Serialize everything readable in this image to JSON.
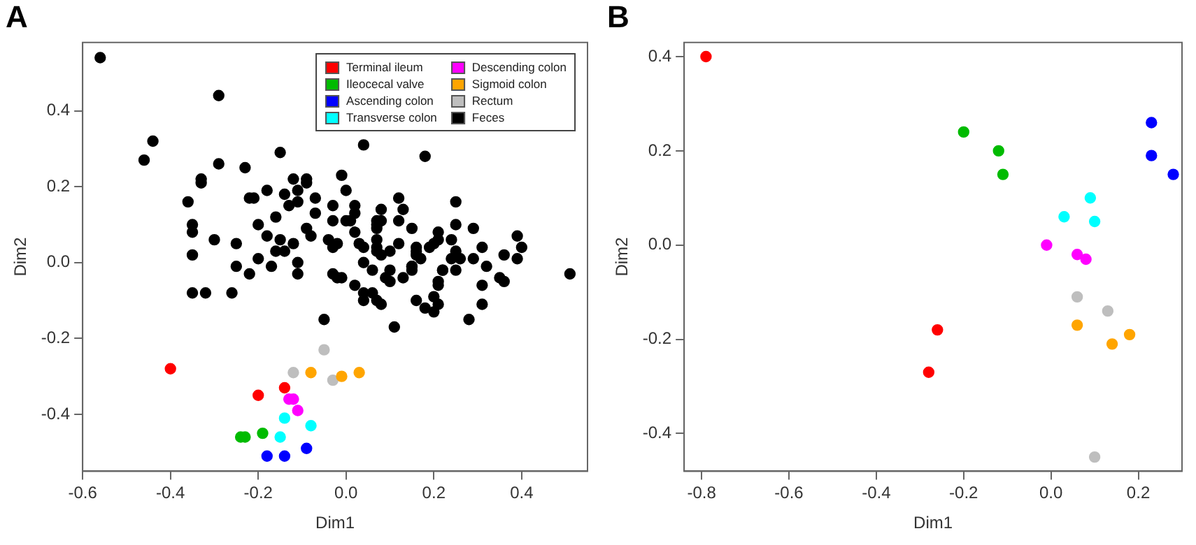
{
  "chart_data": [
    {
      "type": "scatter",
      "title": "A",
      "xlabel": "Dim1",
      "ylabel": "Dim2",
      "xlim": [
        -0.6,
        0.55
      ],
      "ylim": [
        -0.55,
        0.58
      ],
      "xticks": [
        -0.6,
        -0.4,
        -0.2,
        {
          "value": 0,
          "label": "0.0"
        },
        0.2,
        0.4
      ],
      "yticks": [
        -0.4,
        -0.2,
        {
          "value": 0,
          "label": "0.0"
        },
        0.2,
        0.4
      ],
      "grid": false,
      "legend": "top right",
      "marker": "circle",
      "series": [
        {
          "name": "Terminal ileum",
          "color": "#ff0000",
          "x": [
            -0.4,
            -0.2,
            -0.14
          ],
          "values": [
            -0.28,
            -0.35,
            -0.33
          ]
        },
        {
          "name": "Ileocecal valve",
          "color": "#00bb00",
          "x": [
            -0.24,
            -0.23,
            -0.19
          ],
          "values": [
            -0.46,
            -0.46,
            -0.45
          ]
        },
        {
          "name": "Ascending colon",
          "color": "#0000ff",
          "x": [
            -0.18,
            -0.14,
            -0.09
          ],
          "values": [
            -0.51,
            -0.51,
            -0.49
          ]
        },
        {
          "name": "Transverse colon",
          "color": "#00ffff",
          "x": [
            -0.14,
            -0.08,
            -0.15
          ],
          "values": [
            -0.41,
            -0.43,
            -0.46
          ]
        },
        {
          "name": "Descending colon",
          "color": "#ff00ff",
          "x": [
            -0.13,
            -0.12,
            -0.11
          ],
          "values": [
            -0.36,
            -0.36,
            -0.39
          ]
        },
        {
          "name": "Sigmoid colon",
          "color": "#ffa500",
          "x": [
            -0.08,
            -0.01,
            0.03
          ],
          "values": [
            -0.29,
            -0.3,
            -0.29
          ]
        },
        {
          "name": "Rectum",
          "color": "#bebebe",
          "x": [
            -0.05,
            -0.12,
            -0.03
          ],
          "values": [
            -0.23,
            -0.29,
            -0.31
          ]
        },
        {
          "name": "Feces",
          "color": "#000000",
          "x": [
            -0.56,
            -0.29,
            -0.44,
            -0.46,
            -0.29,
            -0.23,
            -0.15,
            -0.33,
            -0.33,
            -0.36,
            -0.35,
            -0.35,
            -0.35,
            -0.3,
            -0.25,
            -0.25,
            -0.22,
            -0.21,
            -0.2,
            -0.2,
            -0.22,
            -0.18,
            -0.16,
            -0.18,
            -0.15,
            -0.17,
            -0.16,
            -0.14,
            -0.14,
            -0.13,
            -0.11,
            -0.12,
            -0.11,
            -0.09,
            -0.09,
            -0.07,
            -0.07,
            -0.09,
            -0.08,
            -0.12,
            -0.11,
            -0.11,
            -0.03,
            -0.01,
            0,
            -0.03,
            0,
            -0.04,
            -0.02,
            -0.03,
            -0.03,
            -0.01,
            -0.02,
            0.04,
            0.18,
            0.02,
            -0.05,
            0.11,
            0.28,
            0.02,
            0.02,
            0.01,
            0.02,
            0.03,
            0.04,
            0.04,
            0.06,
            0.04,
            0.04,
            0.06,
            0.07,
            0.08,
            0.08,
            0.07,
            0.08,
            0.07,
            0.07,
            0.07,
            0.07,
            0.07,
            0.08,
            0.1,
            0.12,
            0.1,
            0.09,
            0.1,
            0.12,
            0.13,
            0.12,
            0.15,
            0.13,
            0.16,
            0.16,
            0.17,
            0.16,
            0.15,
            0.15,
            0.15,
            0.19,
            0.2,
            0.21,
            0.21,
            0.22,
            0.22,
            0.21,
            0.21,
            0.2,
            0.16,
            0.18,
            0.21,
            0.2,
            0.25,
            0.25,
            0.24,
            0.25,
            0.24,
            0.26,
            0.25,
            0.29,
            0.31,
            0.29,
            0.32,
            0.31,
            0.31,
            0.36,
            0.39,
            0.4,
            0.39,
            0.35,
            0.36,
            0.51,
            -0.35,
            -0.32,
            -0.26
          ],
          "values": [
            0.54,
            0.44,
            0.32,
            0.27,
            0.26,
            0.25,
            0.29,
            0.22,
            0.21,
            0.16,
            0.1,
            0.08,
            0.02,
            0.06,
            0.05,
            -0.01,
            0.17,
            0.17,
            0.1,
            0.01,
            -0.03,
            0.19,
            0.12,
            0.07,
            0.06,
            -0.01,
            0.03,
            0.03,
            0.18,
            0.15,
            0.16,
            0.22,
            0.19,
            0.21,
            0.22,
            0.17,
            0.13,
            0.09,
            0.07,
            0.05,
            0,
            -0.03,
            0.15,
            0.23,
            0.19,
            0.11,
            0.11,
            0.06,
            0.05,
            0.04,
            -0.03,
            -0.04,
            -0.04,
            0.31,
            0.28,
            -0.06,
            -0.15,
            -0.17,
            -0.15,
            0.15,
            0.13,
            0.11,
            0.08,
            0.05,
            0.04,
            0,
            -0.02,
            -0.08,
            -0.1,
            -0.08,
            -0.1,
            -0.11,
            0.14,
            0.11,
            0.11,
            0.1,
            0.09,
            0.06,
            0.04,
            0.03,
            0.02,
            0.03,
            0.05,
            -0.02,
            -0.04,
            -0.05,
            0.17,
            0.14,
            0.11,
            0.09,
            -0.04,
            0.04,
            0.03,
            0.01,
            0.02,
            -0.01,
            -0.02,
            -0.01,
            0.04,
            0.05,
            0.06,
            0.08,
            -0.02,
            -0.02,
            -0.05,
            -0.06,
            -0.09,
            -0.1,
            -0.12,
            -0.11,
            -0.13,
            0.16,
            0.1,
            0.06,
            0.03,
            0.01,
            0.01,
            -0.02,
            0.09,
            0.04,
            0.01,
            -0.01,
            -0.06,
            -0.11,
            0.02,
            0.07,
            0.04,
            0.01,
            -0.04,
            -0.05,
            -0.03,
            -0.08,
            -0.08,
            -0.08
          ]
        }
      ]
    },
    {
      "type": "scatter",
      "title": "B",
      "xlabel": "Dim1",
      "ylabel": "Dim2",
      "xlim": [
        -0.84,
        0.3
      ],
      "ylim": [
        -0.48,
        0.43
      ],
      "xticks": [
        -0.8,
        -0.6,
        -0.4,
        -0.2,
        {
          "value": 0,
          "label": "0.0"
        },
        0.2
      ],
      "yticks": [
        -0.4,
        -0.2,
        {
          "value": 0,
          "label": "0.0"
        },
        0.2,
        0.4
      ],
      "grid": false,
      "marker": "circle",
      "series": [
        {
          "color": "#ff0000",
          "x": [
            -0.79,
            -0.26,
            -0.28
          ],
          "values": [
            0.4,
            -0.18,
            -0.27
          ]
        },
        {
          "color": "#00bb00",
          "x": [
            -0.2,
            -0.12,
            -0.11
          ],
          "values": [
            0.24,
            0.2,
            0.15
          ]
        },
        {
          "color": "#0000ff",
          "x": [
            0.23,
            0.23,
            0.28
          ],
          "values": [
            0.26,
            0.19,
            0.15
          ]
        },
        {
          "color": "#00ffff",
          "x": [
            0.09,
            0.03,
            0.1
          ],
          "values": [
            0.1,
            0.06,
            0.05
          ]
        },
        {
          "color": "#ff00ff",
          "x": [
            -0.01,
            0.06,
            0.08
          ],
          "values": [
            0,
            -0.02,
            -0.03
          ]
        },
        {
          "color": "#bebebe",
          "x": [
            0.06,
            0.13,
            0.1
          ],
          "values": [
            -0.11,
            -0.14,
            -0.45
          ]
        },
        {
          "color": "#ffa500",
          "x": [
            0.06,
            0.14,
            0.18
          ],
          "values": [
            -0.17,
            -0.21,
            -0.19
          ]
        }
      ]
    }
  ]
}
